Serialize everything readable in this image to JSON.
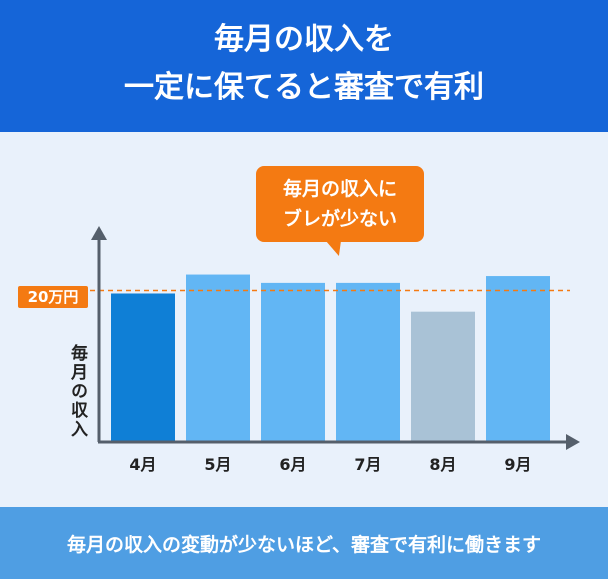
{
  "header": {
    "line1": "毎月の収入を",
    "line2": "一定に保てると審査で有利"
  },
  "callout": {
    "line1": "毎月の収入に",
    "line2": "ブレが少ない"
  },
  "footer": {
    "text": "毎月の収入の変動が少ないほど、審査で有利に働きます"
  },
  "colors": {
    "header_bg": "#1565d8",
    "footer_bg": "#4f9ee3",
    "accent_orange": "#f47a12",
    "bar_first": "#0f7fd6",
    "bar_normal": "#62b6f4",
    "bar_low": "#a9c2d6"
  },
  "chart_data": {
    "type": "bar",
    "categories": [
      "4月",
      "5月",
      "6月",
      "7月",
      "8月",
      "9月"
    ],
    "values": [
      19.6,
      22.1,
      21.0,
      21.0,
      17.2,
      21.9
    ],
    "ylabel": "毎月の収入",
    "reference_line": {
      "value": 20,
      "label": "20万円"
    },
    "ylim": [
      0,
      26
    ],
    "grid": false
  }
}
